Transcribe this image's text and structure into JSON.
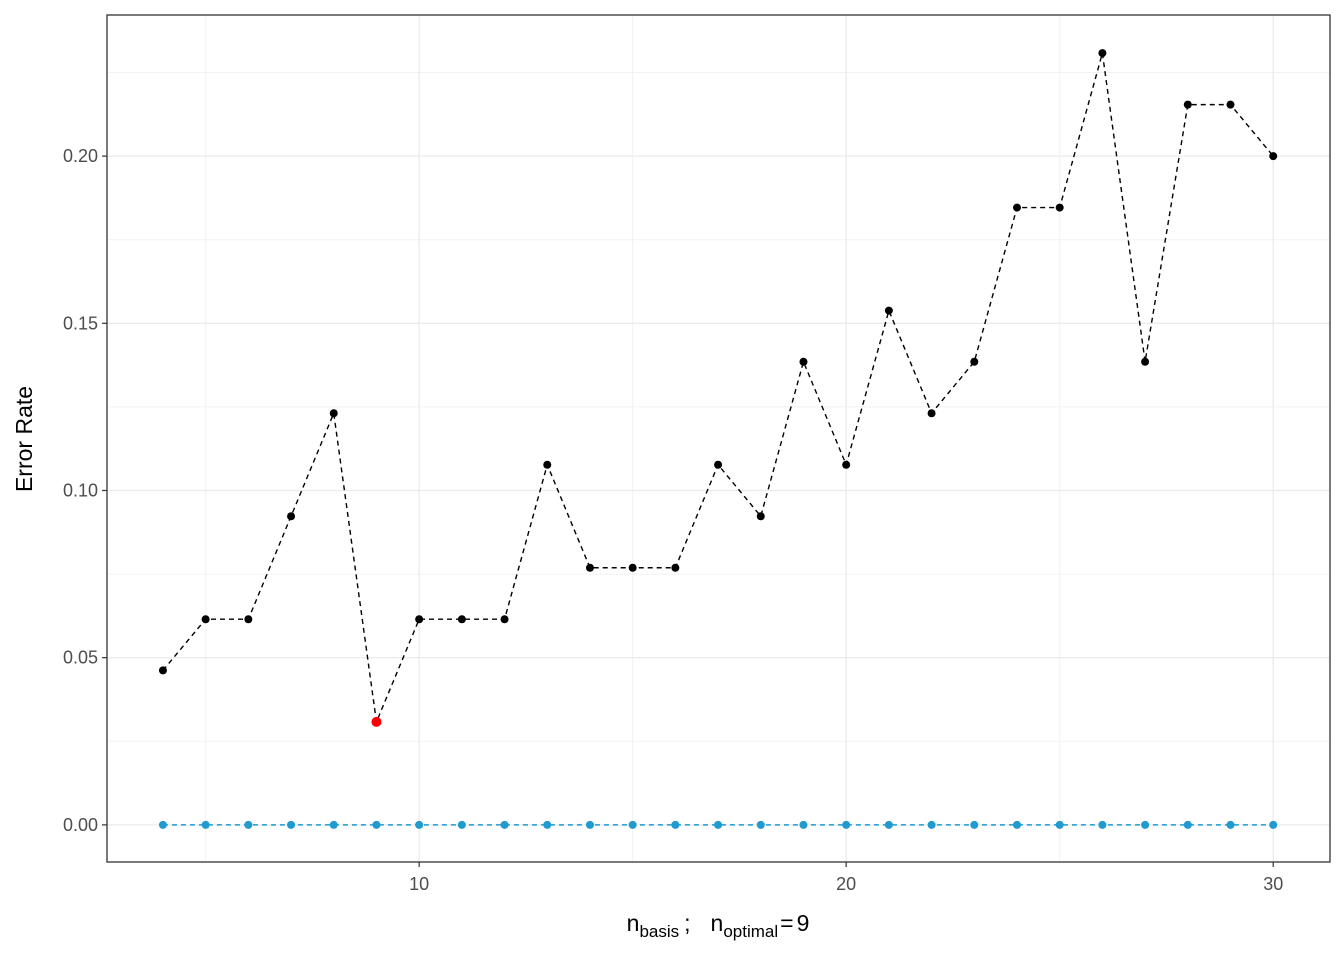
{
  "chart_data": {
    "type": "line",
    "ylabel": "Error Rate",
    "xlabel_parts": [
      "n",
      "basis",
      ";",
      "n",
      "optimal",
      "="
    ],
    "optimal": 9,
    "highlight_color": "#ff0000",
    "x": [
      4,
      5,
      6,
      7,
      8,
      9,
      10,
      11,
      12,
      13,
      14,
      15,
      16,
      17,
      18,
      19,
      20,
      21,
      22,
      23,
      24,
      25,
      26,
      27,
      28,
      29,
      30
    ],
    "series": [
      {
        "color": "#000000",
        "values": [
          0.0462,
          0.0615,
          0.0615,
          0.0923,
          0.1231,
          0.0308,
          0.0615,
          0.0615,
          0.0615,
          0.1077,
          0.0769,
          0.0769,
          0.0769,
          0.1077,
          0.0923,
          0.1385,
          0.1077,
          0.1538,
          0.1231,
          0.1385,
          0.1846,
          0.1846,
          0.2308,
          0.1385,
          0.2154,
          0.2154,
          0.2
        ]
      },
      {
        "color": "#1f9bcf",
        "values": [
          0,
          0,
          0,
          0,
          0,
          0,
          0,
          0,
          0,
          0,
          0,
          0,
          0,
          0,
          0,
          0,
          0,
          0,
          0,
          0,
          0,
          0,
          0,
          0,
          0,
          0,
          0
        ]
      }
    ],
    "xlim": [
      2.69,
      31.33
    ],
    "ylim": [
      -0.0111,
      0.2422
    ],
    "xticks": [
      10,
      20,
      30
    ],
    "yticks": [
      {
        "value": 0,
        "label": "0.00"
      },
      {
        "value": 0.05,
        "label": "0.05"
      },
      {
        "value": 0.1,
        "label": "0.10"
      },
      {
        "value": 0.15,
        "label": "0.15"
      },
      {
        "value": 0.2,
        "label": "0.20"
      }
    ],
    "xminor_ticks": [
      5,
      15,
      25
    ],
    "yminor_ticks": [
      0.025,
      0.075,
      0.125,
      0.175,
      0.225
    ],
    "grid": true,
    "line_style": "dashed"
  }
}
